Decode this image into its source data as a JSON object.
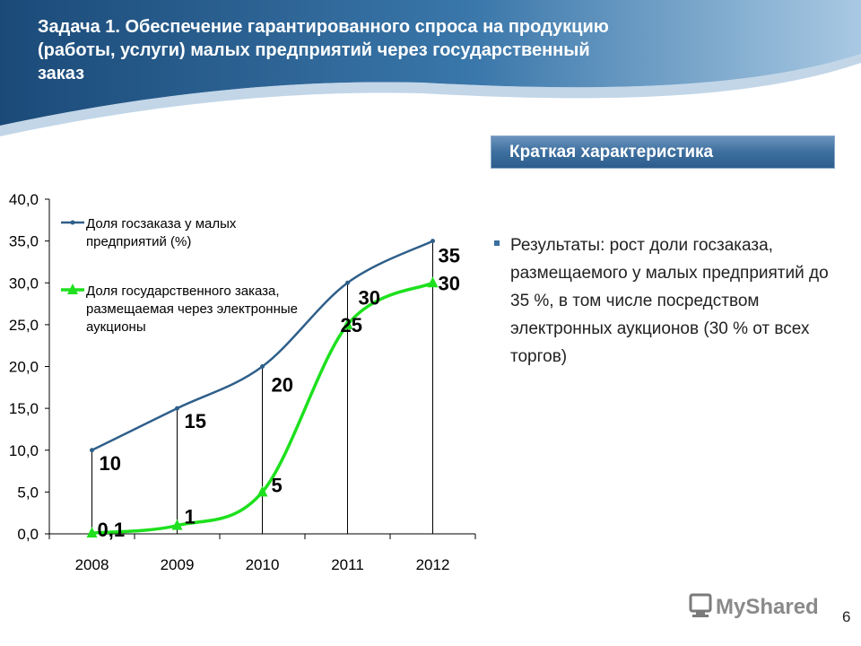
{
  "slide": {
    "title": "Задача 1. Обеспечение гарантированного спроса на продукцию (работы, услуги) малых предприятий через государственный заказ",
    "subtitle": "Краткая характеристика",
    "bullet": "Результаты: рост доли госзаказа, размещаемого у малых предприятий до 35 %, в том числе посредством электронных аукционов (30 % от всех торгов)",
    "page_number": "6",
    "logo_text": "MyShared"
  },
  "colors": {
    "header_dark": "#1d4f7e",
    "series_blue": "#2f5f8a",
    "series_green": "#1ee01e"
  },
  "chart_data": {
    "type": "line",
    "categories": [
      "2008",
      "2009",
      "2010",
      "2011",
      "2012"
    ],
    "ylim": [
      0,
      40
    ],
    "yticks": [
      "0,0",
      "5,0",
      "10,0",
      "15,0",
      "20,0",
      "25,0",
      "30,0",
      "35,0",
      "40,0"
    ],
    "grid": false,
    "legend_position": "top-left",
    "series": [
      {
        "name": "Доля госзаказа у малых предприятий (%)",
        "legend_lines": [
          "Доля госзаказа у малых",
          "предприятий (%)"
        ],
        "values": [
          10,
          15,
          20,
          30,
          35
        ],
        "labels": [
          "10",
          "15",
          "20",
          "30",
          "35"
        ],
        "marker": "dot",
        "color": "#2f5f8a"
      },
      {
        "name": "Доля государственного заказа, размещаемая через электронные аукционы",
        "legend_lines": [
          "Доля государственного заказа,",
          "размещаемая через электронные",
          "аукционы"
        ],
        "values": [
          0.1,
          1,
          5,
          25,
          30
        ],
        "labels": [
          "0,1",
          "1",
          "5",
          "25",
          "30"
        ],
        "marker": "triangle",
        "color": "#1ee01e"
      }
    ]
  }
}
